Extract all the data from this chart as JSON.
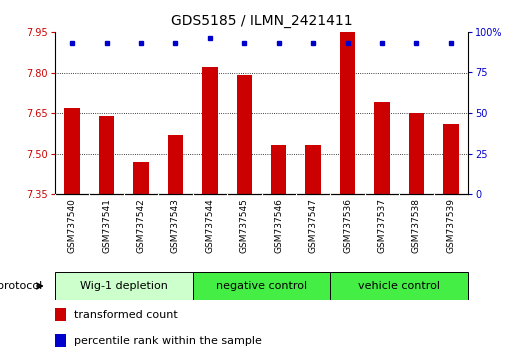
{
  "title": "GDS5185 / ILMN_2421411",
  "samples": [
    "GSM737540",
    "GSM737541",
    "GSM737542",
    "GSM737543",
    "GSM737544",
    "GSM737545",
    "GSM737546",
    "GSM737547",
    "GSM737536",
    "GSM737537",
    "GSM737538",
    "GSM737539"
  ],
  "transformed_counts": [
    7.67,
    7.64,
    7.47,
    7.57,
    7.82,
    7.79,
    7.53,
    7.53,
    7.95,
    7.69,
    7.65,
    7.61
  ],
  "percentile_ranks": [
    93,
    93,
    93,
    93,
    96,
    93,
    93,
    93,
    93,
    93,
    93,
    93
  ],
  "ylim_left": [
    7.35,
    7.95
  ],
  "ylim_right": [
    0,
    100
  ],
  "yticks_left": [
    7.35,
    7.5,
    7.65,
    7.8,
    7.95
  ],
  "yticks_right": [
    0,
    25,
    50,
    75,
    100
  ],
  "grid_values": [
    7.5,
    7.65,
    7.8
  ],
  "bar_color": "#cc0000",
  "dot_color": "#0000cc",
  "groups": [
    {
      "label": "Wig-1 depletion",
      "start": 0,
      "end": 4
    },
    {
      "label": "negative control",
      "start": 4,
      "end": 8
    },
    {
      "label": "vehicle control",
      "start": 8,
      "end": 12
    }
  ],
  "group_colors": [
    "#ccffcc",
    "#44ee44",
    "#44ee44"
  ],
  "protocol_label": "protocol",
  "legend_bar_label": "transformed count",
  "legend_dot_label": "percentile rank within the sample",
  "bar_bottom": 7.35,
  "bar_width": 0.45,
  "background_color": "#ffffff",
  "sample_label_bg": "#c8c8c8",
  "title_fontsize": 10,
  "axis_label_fontsize": 7,
  "group_label_fontsize": 8,
  "legend_fontsize": 8
}
